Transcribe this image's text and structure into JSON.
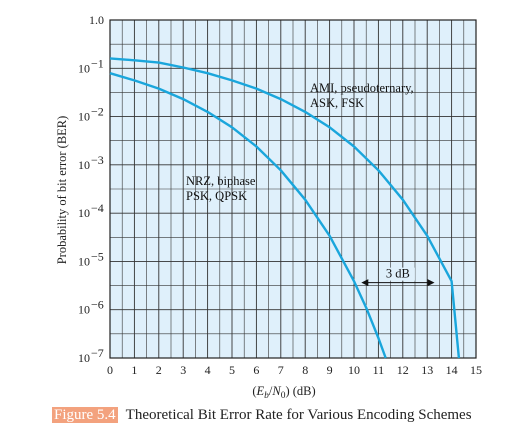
{
  "chart_data": {
    "type": "line",
    "xlabel": "(Eₕ/N₀) (dB)",
    "xlabel_parts": {
      "open": "(",
      "e": "E",
      "e_sub": "b",
      "slash": "/",
      "n": "N",
      "n_sub": "0",
      "close": ") (dB)"
    },
    "ylabel": "Probability of bit error (BER)",
    "xlim": [
      0,
      15
    ],
    "ylim_log10": [
      -7,
      0
    ],
    "y_scale": "log",
    "grid": true,
    "x_ticks": [
      "0",
      "1",
      "2",
      "3",
      "4",
      "5",
      "6",
      "7",
      "8",
      "9",
      "10",
      "11",
      "12",
      "13",
      "14",
      "15"
    ],
    "y_ticks": [
      {
        "base": "1.0",
        "exp": ""
      },
      {
        "base": "10",
        "exp": "−1"
      },
      {
        "base": "10",
        "exp": "−2"
      },
      {
        "base": "10",
        "exp": "−3"
      },
      {
        "base": "10",
        "exp": "−4"
      },
      {
        "base": "10",
        "exp": "−5"
      },
      {
        "base": "10",
        "exp": "−6"
      },
      {
        "base": "10",
        "exp": "−7"
      }
    ],
    "series": [
      {
        "label_lines": [
          "NRZ, biphase",
          "PSK, QPSK"
        ],
        "color": "#1aa6dc",
        "points": [
          [
            0,
            0.079
          ],
          [
            1,
            0.056
          ],
          [
            2,
            0.038
          ],
          [
            3,
            0.023
          ],
          [
            4,
            0.0125
          ],
          [
            5,
            0.006
          ],
          [
            6,
            0.0024
          ],
          [
            7,
            0.00077
          ],
          [
            8,
            0.00019
          ],
          [
            9,
            3.4e-05
          ],
          [
            10,
            3.9e-06
          ],
          [
            10.5,
            1.1e-06
          ],
          [
            11,
            2.6e-07
          ],
          [
            11.3,
            1e-07
          ]
        ]
      },
      {
        "label_lines": [
          "AMI, pseudoternary,",
          "ASK, FSK"
        ],
        "color": "#1aa6dc",
        "points": [
          [
            0,
            0.16
          ],
          [
            1,
            0.146
          ],
          [
            2,
            0.131
          ],
          [
            3,
            0.104
          ],
          [
            4,
            0.079
          ],
          [
            5,
            0.056
          ],
          [
            6,
            0.038
          ],
          [
            7,
            0.023
          ],
          [
            8,
            0.0125
          ],
          [
            9,
            0.006
          ],
          [
            10,
            0.0024
          ],
          [
            11,
            0.00077
          ],
          [
            12,
            0.00019
          ],
          [
            13,
            3.4e-05
          ],
          [
            14,
            3.9e-06
          ],
          [
            14.3,
            1e-07
          ]
        ]
      }
    ],
    "annotation": {
      "text": "3 dB",
      "from_x": 10.3,
      "to_x": 13.3,
      "at_y": 4e-06
    }
  },
  "caption": {
    "figure_number": "Figure 5.4",
    "title": "Theoretical Bit Error Rate for Various Encoding Schemes"
  },
  "colors": {
    "grid_fill": "#dff0fb",
    "grid_line": "#333333",
    "curve": "#1aa6dc",
    "figure_badge": "#f3a27e"
  }
}
